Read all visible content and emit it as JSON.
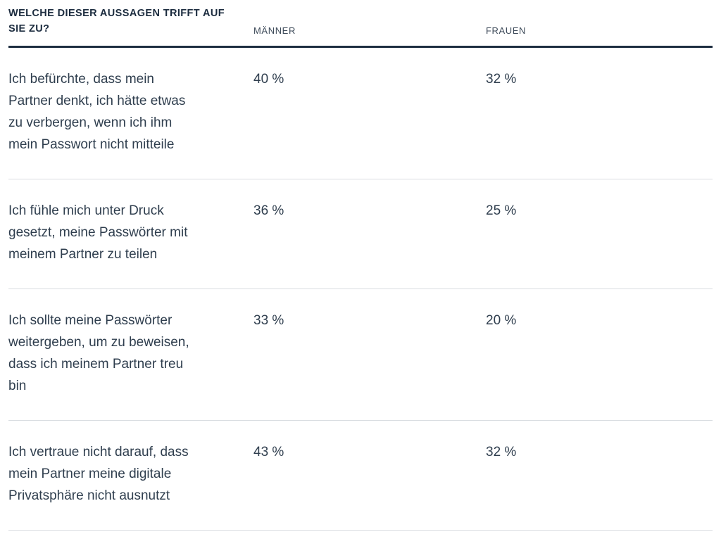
{
  "colors": {
    "header_text": "#1c2c3f",
    "column_header_text": "#3d4a59",
    "body_text": "#2f3e4e",
    "thick_rule": "#1d2e41",
    "row_divider": "#d9dde1",
    "background": "#ffffff"
  },
  "table": {
    "title": "WELCHE DIESER AUSSAGEN TRIFFT AUF\nSIE ZU?",
    "columns": [
      "MÄNNER",
      "FRAUEN"
    ],
    "rows": [
      {
        "statement": "Ich befürchte, dass mein\nPartner denkt, ich hätte etwas\nzu verbergen, wenn ich ihm\nmein Passwort nicht mitteile",
        "maenner": "40 %",
        "frauen": "32 %"
      },
      {
        "statement": "Ich fühle mich unter Druck\ngesetzt, meine Passwörter mit\nmeinem Partner zu teilen",
        "maenner": "36 %",
        "frauen": "25 %"
      },
      {
        "statement": "Ich sollte meine Passwörter\nweitergeben, um zu beweisen,\ndass ich meinem Partner treu\nbin",
        "maenner": "33 %",
        "frauen": "20 %"
      },
      {
        "statement": "Ich vertraue nicht darauf, dass\nmein Partner meine digitale\nPrivatsphäre nicht ausnutzt",
        "maenner": "43 %",
        "frauen": "32 %"
      }
    ]
  },
  "chart_data": {
    "type": "table",
    "title": "Welche dieser Aussagen trifft auf Sie zu?",
    "columns": [
      "Männer",
      "Frauen"
    ],
    "categories": [
      "Ich befürchte, dass mein Partner denkt, ich hätte etwas zu verbergen, wenn ich ihm mein Passwort nicht mitteile",
      "Ich fühle mich unter Druck gesetzt, meine Passwörter mit meinem Partner zu teilen",
      "Ich sollte meine Passwörter weitergeben, um zu beweisen, dass ich meinem Partner treu bin",
      "Ich vertraue nicht darauf, dass mein Partner meine digitale Privatsphäre nicht ausnutzt"
    ],
    "series": [
      {
        "name": "Männer",
        "values": [
          40,
          36,
          33,
          43
        ]
      },
      {
        "name": "Frauen",
        "values": [
          32,
          25,
          20,
          32
        ]
      }
    ],
    "unit": "%"
  }
}
